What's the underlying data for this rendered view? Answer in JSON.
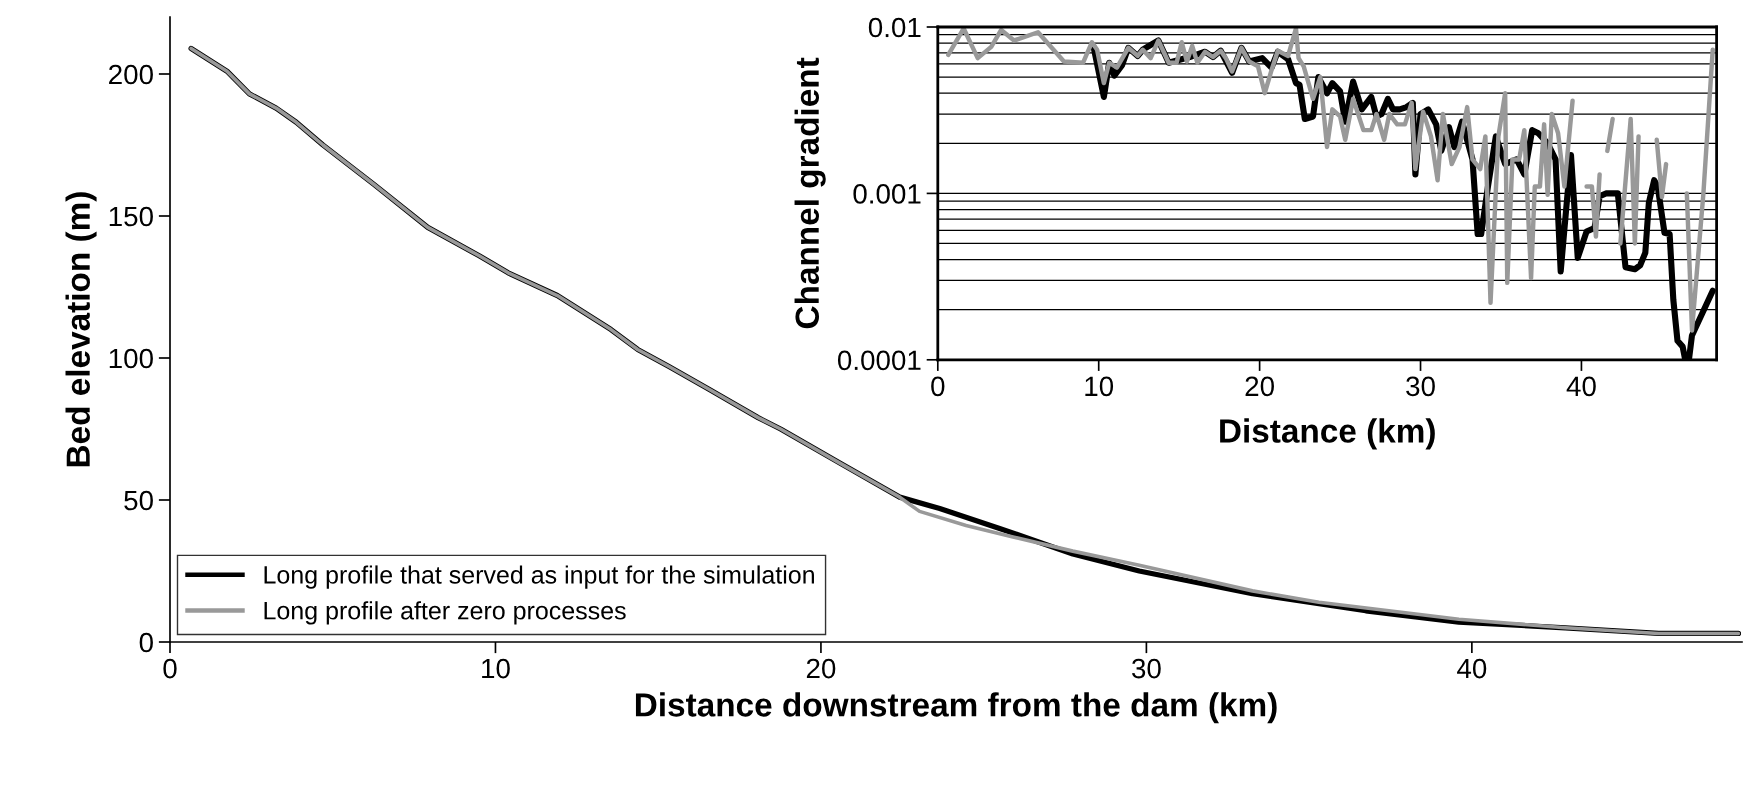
{
  "chart_data": [
    {
      "type": "line",
      "xlabel": "Distance downstream from the dam (km)",
      "ylabel": "Bed elevation (m)",
      "xlim": [
        0,
        48.3
      ],
      "xticks": [
        0,
        10,
        20,
        30,
        40
      ],
      "ylim": [
        0,
        220
      ],
      "yticks": [
        0,
        50,
        100,
        150,
        200
      ],
      "grid": false,
      "legend": "bottom left",
      "series": [
        {
          "name": "Long profile that served as input for the simulation",
          "color": "#000000",
          "x": [
            0.65,
            1.75,
            2.44,
            3.26,
            3.88,
            4.7,
            6.28,
            7.92,
            9.5,
            10.39,
            11.9,
            13.55,
            14.37,
            15.33,
            16.56,
            18.07,
            18.76,
            20.58,
            22.42,
            23.65,
            25.49,
            27.74,
            29.78,
            33.26,
            36.74,
            39.6,
            42.87,
            45.74,
            48.19
          ],
          "values": [
            209,
            201,
            193,
            188,
            183,
            175,
            161,
            146,
            136,
            130,
            122,
            110,
            103,
            97,
            89,
            79,
            75,
            63,
            51,
            47,
            40,
            31,
            25,
            17,
            11,
            7,
            5,
            3,
            3
          ]
        },
        {
          "name": "Long profile after zero processes",
          "color": "#999999",
          "x": [
            0.65,
            1.75,
            2.44,
            3.26,
            3.88,
            4.7,
            6.28,
            7.92,
            9.5,
            10.39,
            11.9,
            13.55,
            14.37,
            15.33,
            16.56,
            18.07,
            18.76,
            20.58,
            22.42,
            23.03,
            24.46,
            25.9,
            27.74,
            29.78,
            33.26,
            35.3,
            39.6,
            42.87,
            45.74,
            48.19
          ],
          "values": [
            209,
            201,
            193,
            188,
            183,
            175,
            161,
            146,
            136,
            130,
            122,
            110,
            103,
            97,
            89,
            79,
            75,
            63,
            51,
            46,
            41,
            37,
            32,
            27,
            18,
            14,
            8,
            5,
            3,
            3
          ]
        }
      ]
    },
    {
      "type": "line",
      "xlabel": "Distance (km)",
      "ylabel": "Channel gradient",
      "xlim": [
        0,
        48.4
      ],
      "xticks": [
        0,
        10,
        20,
        30,
        40
      ],
      "ylim": [
        0.0001,
        0.01
      ],
      "yticks": [
        0.0001,
        0.001,
        0.01
      ],
      "log": "y",
      "grid": "y",
      "series": [
        {
          "color": "#000000",
          "x": [
            9.68,
            10.32,
            10.65,
            10.97,
            11.45,
            11.84,
            12.42,
            12.74,
            13.71,
            14.35,
            15.65,
            16.61,
            17.1,
            17.58,
            18.29,
            18.87,
            19.35,
            20.16,
            20.74,
            21.13,
            21.77,
            22.26,
            22.48,
            22.81,
            23.32,
            23.65,
            24.19,
            24.52,
            25.0,
            25.32,
            25.81,
            26.35,
            26.94,
            27.26,
            27.58,
            27.97,
            28.29,
            28.71,
            29.13,
            29.52,
            29.68,
            30.0,
            30.48,
            30.97,
            31.29,
            31.77,
            32.1,
            32.58,
            33.23,
            33.55,
            33.77,
            34.19,
            34.68,
            35.26,
            35.97,
            36.45,
            36.94,
            37.32,
            37.9,
            38.39,
            38.71,
            39.35,
            39.77,
            40.32,
            40.81,
            41.13,
            41.52,
            42.26,
            42.74,
            43.32,
            43.65,
            43.97,
            44.19,
            44.52,
            44.74,
            45.16,
            45.48,
            45.71,
            45.97,
            46.29,
            46.45,
            46.68,
            46.87,
            48.16
          ],
          "values": [
            0.0076,
            0.0038,
            0.0061,
            0.0051,
            0.0059,
            0.0075,
            0.0067,
            0.0073,
            0.0083,
            0.0061,
            0.0066,
            0.0071,
            0.0066,
            0.0072,
            0.0053,
            0.0075,
            0.0062,
            0.0065,
            0.0057,
            0.0071,
            0.0064,
            0.0046,
            0.0045,
            0.0028,
            0.0029,
            0.005,
            0.004,
            0.0046,
            0.0041,
            0.0027,
            0.0047,
            0.0032,
            0.0038,
            0.0029,
            0.003,
            0.0037,
            0.0032,
            0.0032,
            0.0033,
            0.0035,
            0.0013,
            0.003,
            0.0032,
            0.0026,
            0.0018,
            0.0025,
            0.0019,
            0.0027,
            0.0016,
            0.00057,
            0.00057,
            0.0011,
            0.0022,
            0.0015,
            0.0016,
            0.0013,
            0.0024,
            0.0023,
            0.002,
            0.0016,
            0.00034,
            0.0017,
            0.00041,
            0.00059,
            0.00062,
            0.00096,
            0.001,
            0.001,
            0.00036,
            0.00035,
            0.00037,
            0.00044,
            0.00088,
            0.0012,
            0.0011,
            0.00058,
            0.00057,
            0.00023,
            0.00013,
            0.00012,
            0.0001,
            0.0001,
            0.00014,
            0.00026
          ]
        },
        {
          "color": "#999999",
          "x": [
            0.65,
            1.61,
            2.48,
            3.32,
            3.94,
            4.74,
            6.23,
            7.84,
            9.03,
            9.58,
            9.9,
            10.32,
            10.65,
            11.13,
            11.84,
            12.42,
            12.74,
            13.23,
            13.71,
            14.35,
            14.84,
            15.16,
            15.48,
            15.81,
            16.13,
            16.61,
            17.1,
            17.58,
            17.9,
            18.29,
            18.87,
            19.35,
            19.9,
            20.32,
            20.74,
            21.13,
            21.77,
            22.26,
            22.42,
            22.74,
            23.32,
            23.77,
            24.19,
            24.52,
            25.0,
            25.32,
            25.81,
            26.45,
            26.94,
            27.26,
            27.74,
            28.06,
            28.55,
            29.03,
            29.45,
            29.68,
            30.16,
            30.65,
            31.06,
            31.39,
            31.94,
            32.42,
            32.9,
            33.23,
            33.71,
            34.03,
            34.35,
            34.84,
            35.26,
            35.39,
            35.71,
            36.13,
            36.45,
            36.87,
            37.1,
            37.42,
            37.68,
            37.9,
            38.16,
            38.55,
            38.94,
            39.45,
            40.0,
            40.32,
            40.65,
            40.9,
            41.13,
            41.4,
            41.61,
            41.94,
            42.2,
            42.42,
            43.06,
            43.32,
            43.55,
            43.9,
            44.68,
            45.0,
            45.26,
            45.8,
            46.55,
            46.87,
            47.58,
            48.16
          ],
          "values": [
            0.0068,
            0.0098,
            0.0065,
            0.0076,
            0.0096,
            0.0083,
            0.0093,
            0.0062,
            0.0061,
            0.0081,
            0.0073,
            0.0046,
            0.0061,
            0.0057,
            0.0075,
            0.0067,
            0.0073,
            0.0065,
            0.0083,
            0.0061,
            0.0061,
            0.0081,
            0.0062,
            0.0077,
            0.0061,
            0.0071,
            0.0066,
            0.0072,
            0.0065,
            0.0054,
            0.0075,
            0.0062,
            0.0058,
            0.004,
            0.0055,
            0.0072,
            0.0067,
            0.0098,
            0.0065,
            0.0058,
            0.0037,
            0.005,
            0.0019,
            0.0032,
            0.0029,
            0.0021,
            0.0037,
            0.0024,
            0.0024,
            0.003,
            0.0021,
            0.003,
            0.0026,
            0.0026,
            0.0035,
            0.0014,
            0.0031,
            0.0022,
            0.0012,
            0.003,
            0.0015,
            0.0019,
            0.0033,
            0.0016,
            0.0014,
            0.0022,
            0.00022,
            0.0022,
            0.004,
            0.00029,
            0.0016,
            0.0016,
            0.0024,
            0.00031,
            0.0011,
            0.0011,
            0.0026,
            0.00098,
            0.003,
            0.0023,
            0.0011,
            0.0036,
            null,
            0.0011,
            0.0011,
            0.00055,
            0.0013,
            null,
            0.0018,
            0.0028,
            null,
            0.0005,
            0.0028,
            0.0005,
            0.0022,
            null,
            0.0021,
            0.00095,
            0.0015,
            null,
            0.001,
            0.00015,
            0.001,
            0.0073
          ]
        }
      ]
    }
  ]
}
